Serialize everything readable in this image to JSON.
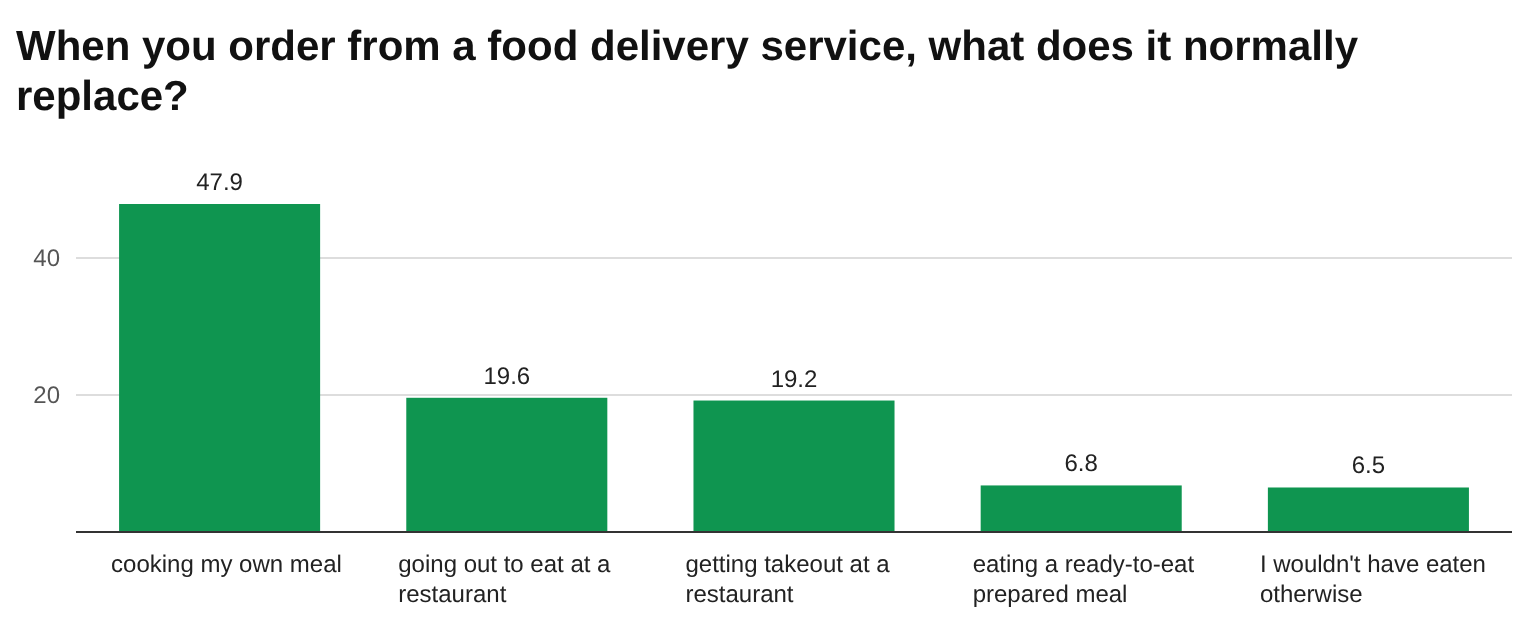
{
  "chart_data": {
    "type": "bar",
    "title": "When you order from a food delivery service, what does it normally replace?",
    "categories": [
      "cooking my own meal",
      "going out to eat at a restaurant",
      "getting takeout at a restaurant",
      "eating a ready-to-eat prepared meal",
      "I wouldn't have eaten otherwise"
    ],
    "values": [
      47.9,
      19.6,
      19.2,
      6.8,
      6.5
    ],
    "color": "#0f9550",
    "ylim": [
      0,
      47.9
    ],
    "yticks": [
      {
        "value": 0,
        "label": null
      },
      20,
      40
    ],
    "grid": "y",
    "data_labels": true
  }
}
